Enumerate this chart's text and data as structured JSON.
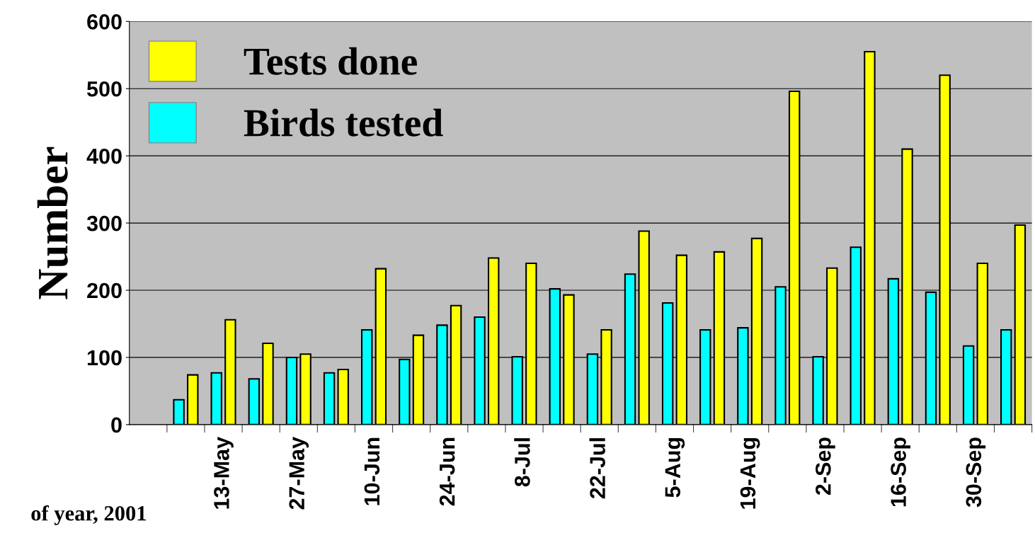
{
  "chart_data": {
    "type": "bar",
    "ylabel": "Number",
    "xlabel": "of year, 2001",
    "categories": [
      null,
      null,
      "13-May",
      null,
      "27-May",
      null,
      "10-Jun",
      null,
      "24-Jun",
      null,
      "8-Jul",
      null,
      "22-Jul",
      null,
      "5-Aug",
      null,
      "19-Aug",
      null,
      "2-Sep",
      null,
      "16-Sep",
      null,
      "30-Sep",
      null
    ],
    "series": [
      {
        "name": "Birds tested",
        "color": "#00ffff",
        "values": [
          null,
          37,
          77,
          68,
          100,
          77,
          141,
          97,
          148,
          160,
          101,
          202,
          105,
          224,
          181,
          141,
          144,
          205,
          101,
          264,
          217,
          197,
          117,
          141
        ]
      },
      {
        "name": "Tests done",
        "color": "#ffff00",
        "values": [
          null,
          74,
          156,
          121,
          105,
          82,
          232,
          133,
          177,
          248,
          240,
          193,
          141,
          288,
          252,
          257,
          277,
          496,
          233,
          555,
          410,
          520,
          240,
          297
        ]
      }
    ],
    "ylim": [
      0,
      600
    ],
    "yticks": [
      0,
      100,
      200,
      300,
      400,
      500,
      600
    ],
    "grid": "y",
    "legend": "top left"
  }
}
